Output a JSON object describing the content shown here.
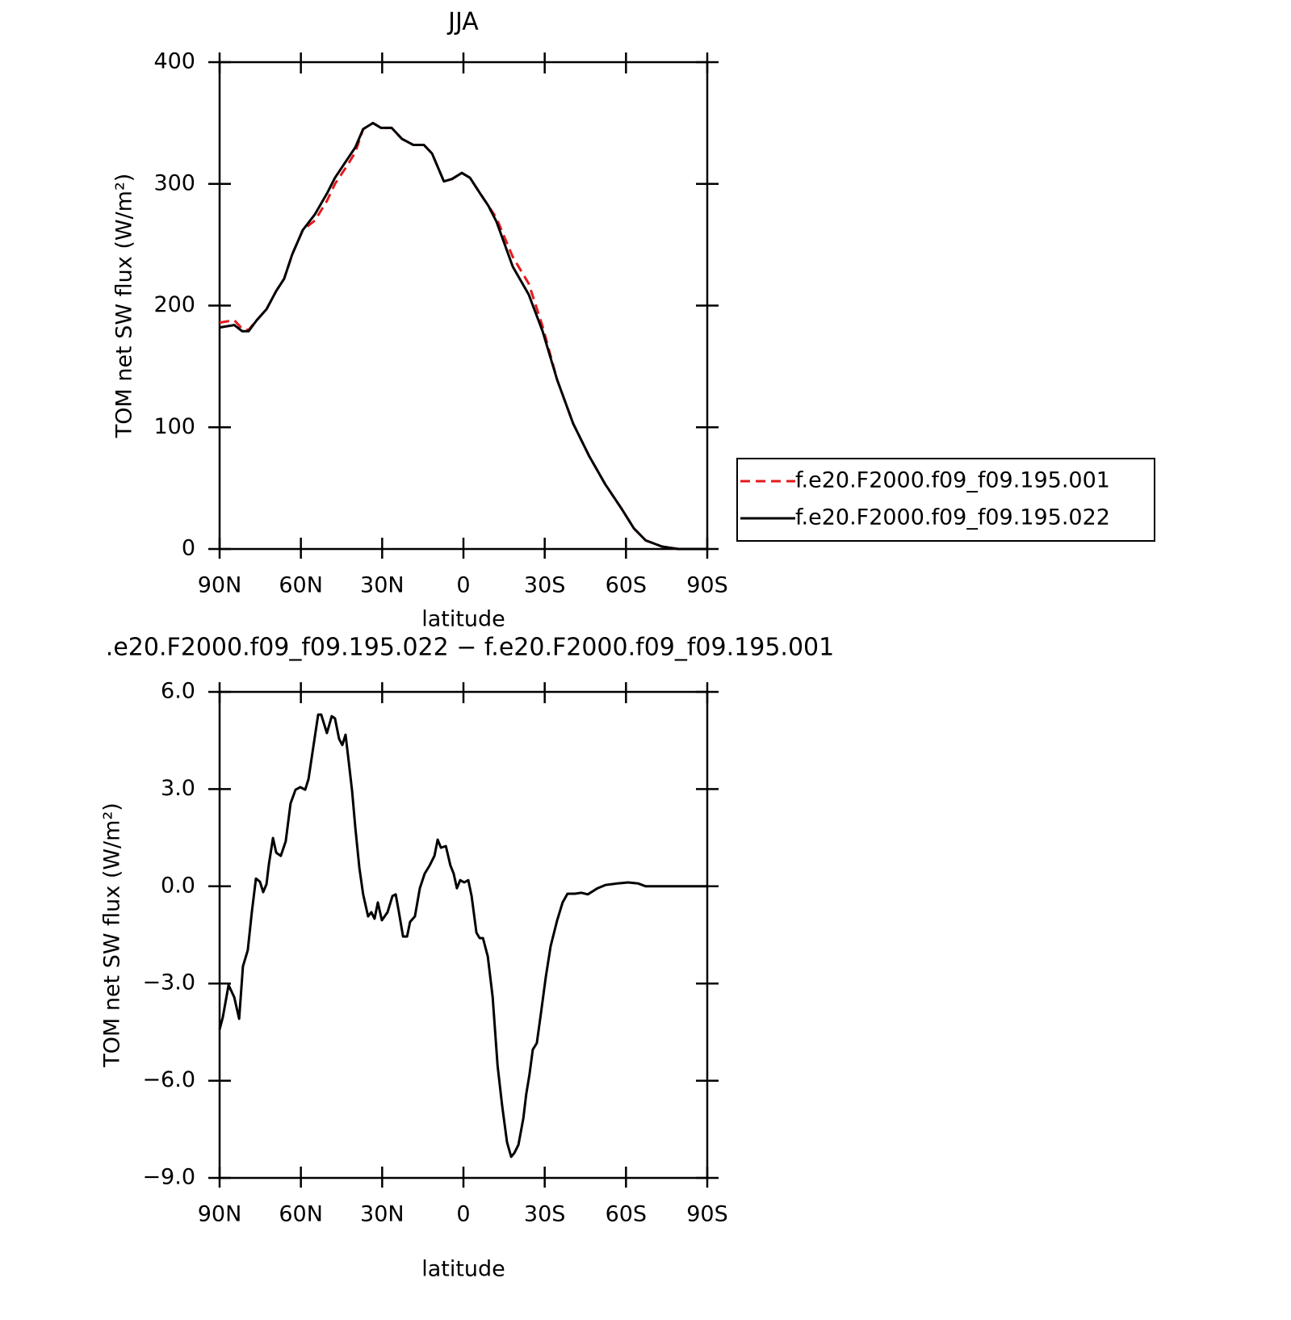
{
  "chart_data": [
    {
      "type": "line",
      "title": "JJA",
      "xlabel": "latitude",
      "ylabel": "TOM net SW flux (W/m²)",
      "x": [
        90,
        84.6,
        81.7,
        79.3,
        76.3,
        72.7,
        69.1,
        66.2,
        63.2,
        59.3,
        54.8,
        50.4,
        47.4,
        42.9,
        39.9,
        37.0,
        33.4,
        30.4,
        26.5,
        22.7,
        18.5,
        14.6,
        11.6,
        7.2,
        4.2,
        0.6,
        -2.4,
        -6.2,
        -9.2,
        -12.2,
        -18.2,
        -24.1,
        -29.2,
        -34.6,
        -40.5,
        -46.5,
        -52.4,
        -58.4,
        -62.9,
        -67.3,
        -73.3,
        -79.3,
        -90
      ],
      "series": [
        {
          "name": "f.e20.F2000.f09_f09.195.001",
          "color": "#e41a1c",
          "style": "dashed",
          "values": [
            186,
            188,
            181,
            180,
            188,
            197,
            212,
            222,
            242,
            262,
            270,
            286,
            300,
            315,
            326,
            345,
            350,
            346,
            346,
            337,
            332,
            332,
            325,
            302,
            304,
            309,
            305,
            292,
            282,
            272,
            240,
            218,
            183,
            139,
            103,
            76,
            53,
            33,
            17,
            7,
            2,
            0,
            0
          ]
        },
        {
          "name": "f.e20.F2000.f09_f09.195.022",
          "color": "#000000",
          "style": "solid",
          "values": [
            182,
            184,
            179,
            179,
            188,
            197,
            212,
            222,
            242,
            262,
            275,
            292,
            305,
            320,
            330,
            345,
            350,
            346,
            346,
            337,
            332,
            332,
            325,
            302,
            304,
            309,
            305,
            292,
            282,
            269,
            232,
            209,
            179,
            139,
            103,
            76,
            53,
            33,
            17,
            7,
            2,
            0,
            0
          ]
        }
      ],
      "xlim": [
        90,
        -90
      ],
      "xticks": [
        {
          "value": 90,
          "label": "90N"
        },
        {
          "value": 60,
          "label": "60N"
        },
        {
          "value": 30,
          "label": "30N"
        },
        0,
        {
          "value": -30,
          "label": "30S"
        },
        {
          "value": -60,
          "label": "60S"
        },
        {
          "value": -90,
          "label": "90S"
        }
      ],
      "ylim": [
        0,
        400
      ],
      "yticks": [
        0,
        100,
        200,
        300,
        400
      ],
      "legend": "right"
    },
    {
      "type": "line",
      "title": ".e20.F2000.f09_f09.195.022 − f.e20.F2000.f09_f09.195.001",
      "xlabel": "latitude",
      "ylabel": "TOM net SW flux (W/m²)",
      "color": "#000000",
      "x": [
        90,
        88.8,
        86.7,
        84.6,
        82.8,
        81.4,
        79.6,
        78.1,
        76.6,
        75.1,
        73.9,
        72.7,
        71.8,
        70.3,
        69.1,
        67.4,
        65.6,
        63.8,
        62.0,
        60.2,
        58.4,
        57.2,
        55.4,
        53.6,
        52.5,
        50.4,
        48.6,
        47.4,
        45.9,
        44.7,
        43.5,
        42.3,
        41.1,
        39.9,
        38.4,
        37.0,
        35.2,
        34.0,
        32.8,
        31.6,
        30.1,
        28.0,
        26.2,
        25.0,
        23.8,
        22.3,
        20.8,
        19.7,
        17.9,
        16.1,
        14.3,
        12.5,
        10.7,
        9.5,
        8.3,
        6.5,
        4.8,
        3.6,
        2.4,
        1.2,
        -0.3,
        -1.8,
        -3.0,
        -4.8,
        -6.0,
        -7.2,
        -9.0,
        -10.8,
        -12.6,
        -14.3,
        -16.1,
        -17.6,
        -18.8,
        -20.3,
        -22.1,
        -23.2,
        -24.4,
        -25.6,
        -27.1,
        -28.6,
        -30.4,
        -32.2,
        -34.6,
        -36.6,
        -38.4,
        -41.1,
        -43.5,
        -45.9,
        -49.5,
        -52.4,
        -56.9,
        -60.8,
        -64.4,
        -67.3,
        -90
      ],
      "values": [
        -4.42,
        -4.04,
        -3.05,
        -3.42,
        -4.09,
        -2.47,
        -1.97,
        -0.8,
        0.24,
        0.14,
        -0.18,
        0.07,
        0.69,
        1.49,
        1.04,
        0.94,
        1.39,
        2.56,
        2.98,
        3.06,
        2.98,
        3.31,
        4.31,
        5.3,
        5.3,
        4.73,
        5.25,
        5.18,
        4.55,
        4.36,
        4.68,
        3.81,
        2.94,
        1.81,
        0.57,
        -0.25,
        -0.93,
        -0.8,
        -1.0,
        -0.5,
        -1.05,
        -0.8,
        -0.3,
        -0.25,
        -0.8,
        -1.55,
        -1.55,
        -1.1,
        -0.93,
        -0.06,
        0.39,
        0.64,
        0.94,
        1.44,
        1.19,
        1.24,
        0.64,
        0.39,
        -0.06,
        0.19,
        0.12,
        0.19,
        -0.3,
        -1.43,
        -1.6,
        -1.6,
        -2.17,
        -3.42,
        -5.54,
        -6.78,
        -7.9,
        -8.35,
        -8.23,
        -7.98,
        -7.16,
        -6.41,
        -5.79,
        -5.04,
        -4.84,
        -3.92,
        -2.8,
        -1.85,
        -1.05,
        -0.5,
        -0.23,
        -0.23,
        -0.2,
        -0.25,
        -0.06,
        0.04,
        0.09,
        0.12,
        0.09,
        0.0,
        0.0
      ],
      "xlim": [
        90,
        -90
      ],
      "xticks": [
        {
          "value": 90,
          "label": "90N"
        },
        {
          "value": 60,
          "label": "60N"
        },
        {
          "value": 30,
          "label": "30N"
        },
        0,
        {
          "value": -30,
          "label": "30S"
        },
        {
          "value": -60,
          "label": "60S"
        },
        {
          "value": -90,
          "label": "90S"
        }
      ],
      "ylim": [
        -9,
        6
      ],
      "yticks": [
        {
          "value": -9,
          "label": "−9.0"
        },
        {
          "value": -6,
          "label": "−6.0"
        },
        {
          "value": -3,
          "label": "−3.0"
        },
        {
          "value": 0,
          "label": "0.0"
        },
        {
          "value": 3,
          "label": "3.0"
        },
        {
          "value": 6,
          "label": "6.0"
        }
      ]
    }
  ]
}
